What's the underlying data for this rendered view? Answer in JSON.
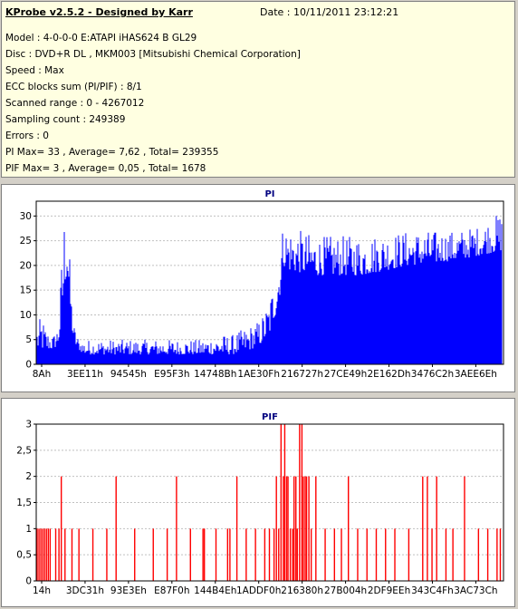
{
  "info": {
    "title": "KProbe v2.5.2 - Designed by Karr",
    "date": "Date : 10/11/2011 23:12:21",
    "lines": [
      "Model : 4-0-0-0 E:ATAPI  iHAS624  B     GL29",
      "Disc : DVD+R DL , MKM003 [Mitsubishi Chemical Corporation]",
      "Speed : Max",
      "ECC blocks sum (PI/PIF) : 8/1",
      "Scanned range : 0 - 4267012",
      "Sampling count : 249389",
      "Errors : 0",
      "PI Max= 33 , Average= 7,62 , Total= 239355",
      "PIF Max= 3 , Average= 0,05 , Total= 1678"
    ]
  },
  "chart_data": [
    {
      "type": "bar",
      "title": "PI",
      "color": "#0000ff",
      "ylim": [
        0,
        33
      ],
      "yticks": [
        0,
        5,
        10,
        15,
        20,
        25,
        30
      ],
      "ytick_labels": [
        "0",
        "5",
        "10",
        "15",
        "20",
        "25",
        "30"
      ],
      "xtick_labels": [
        "8Ah",
        "3EE11h",
        "94545h",
        "E95F3h",
        "14748Bh",
        "1AE30Fh",
        "216727h",
        "27CE49h",
        "2E162Dh",
        "3476C2h",
        "3AEE6Eh"
      ],
      "grid": true,
      "profile": {
        "x": [
          0,
          0.01,
          0.02,
          0.035,
          0.045,
          0.05,
          0.055,
          0.06,
          0.065,
          0.07,
          0.075,
          0.08,
          0.09,
          0.1,
          0.15,
          0.25,
          0.35,
          0.4,
          0.42,
          0.44,
          0.46,
          0.48,
          0.5,
          0.52,
          0.53,
          0.54,
          0.6,
          0.7,
          0.8,
          0.9,
          0.95,
          1.0
        ],
        "base": [
          3,
          3,
          3,
          3,
          4,
          6,
          10,
          16,
          18,
          12,
          7,
          4,
          3,
          2,
          2,
          2,
          2,
          2,
          2,
          2.5,
          3,
          4,
          6,
          12,
          20,
          19,
          18,
          18,
          20,
          21,
          22,
          23
        ],
        "peak": [
          8,
          10,
          7,
          6,
          8,
          15,
          28,
          33,
          30,
          22,
          12,
          8,
          5,
          5,
          5,
          5,
          5,
          6,
          6,
          7,
          8,
          9,
          13,
          22,
          29,
          28,
          26,
          26,
          27,
          27,
          28,
          31
        ]
      }
    },
    {
      "type": "bar",
      "title": "PIF",
      "color": "#ff0000",
      "ylim": [
        0,
        3
      ],
      "yticks": [
        0,
        0.5,
        1,
        1.5,
        2,
        2.5,
        3
      ],
      "ytick_labels": [
        "0",
        "0,5",
        "1",
        "1,5",
        "2",
        "2,5",
        "3"
      ],
      "xtick_labels": [
        "14h",
        "3DC31h",
        "93E3Eh",
        "E87F0h",
        "144B4Eh",
        "1ADDF0h",
        "216380h",
        "27B004h",
        "2DF9EEh",
        "343C4Fh",
        "3AC73Ch"
      ],
      "grid": true,
      "spikes": [
        {
          "x": 0.0,
          "y": 1
        },
        {
          "x": 0.004,
          "y": 1
        },
        {
          "x": 0.008,
          "y": 1
        },
        {
          "x": 0.012,
          "y": 1
        },
        {
          "x": 0.016,
          "y": 1
        },
        {
          "x": 0.02,
          "y": 1
        },
        {
          "x": 0.024,
          "y": 1
        },
        {
          "x": 0.028,
          "y": 1
        },
        {
          "x": 0.04,
          "y": 1
        },
        {
          "x": 0.047,
          "y": 1
        },
        {
          "x": 0.052,
          "y": 2
        },
        {
          "x": 0.06,
          "y": 1
        },
        {
          "x": 0.075,
          "y": 1
        },
        {
          "x": 0.09,
          "y": 1
        },
        {
          "x": 0.12,
          "y": 1
        },
        {
          "x": 0.15,
          "y": 1
        },
        {
          "x": 0.17,
          "y": 2
        },
        {
          "x": 0.21,
          "y": 1
        },
        {
          "x": 0.25,
          "y": 1
        },
        {
          "x": 0.28,
          "y": 1
        },
        {
          "x": 0.3,
          "y": 2
        },
        {
          "x": 0.33,
          "y": 1
        },
        {
          "x": 0.357,
          "y": 1
        },
        {
          "x": 0.36,
          "y": 1
        },
        {
          "x": 0.385,
          "y": 1
        },
        {
          "x": 0.41,
          "y": 1
        },
        {
          "x": 0.415,
          "y": 1
        },
        {
          "x": 0.43,
          "y": 2
        },
        {
          "x": 0.45,
          "y": 1
        },
        {
          "x": 0.47,
          "y": 1
        },
        {
          "x": 0.49,
          "y": 1
        },
        {
          "x": 0.5,
          "y": 1
        },
        {
          "x": 0.51,
          "y": 1
        },
        {
          "x": 0.515,
          "y": 2
        },
        {
          "x": 0.52,
          "y": 1
        },
        {
          "x": 0.525,
          "y": 3
        },
        {
          "x": 0.53,
          "y": 2
        },
        {
          "x": 0.533,
          "y": 3
        },
        {
          "x": 0.537,
          "y": 2
        },
        {
          "x": 0.54,
          "y": 2
        },
        {
          "x": 0.545,
          "y": 1
        },
        {
          "x": 0.55,
          "y": 1
        },
        {
          "x": 0.553,
          "y": 2
        },
        {
          "x": 0.557,
          "y": 2
        },
        {
          "x": 0.56,
          "y": 1
        },
        {
          "x": 0.565,
          "y": 3
        },
        {
          "x": 0.57,
          "y": 3
        },
        {
          "x": 0.573,
          "y": 2
        },
        {
          "x": 0.577,
          "y": 2
        },
        {
          "x": 0.58,
          "y": 2
        },
        {
          "x": 0.585,
          "y": 2
        },
        {
          "x": 0.59,
          "y": 1
        },
        {
          "x": 0.6,
          "y": 2
        },
        {
          "x": 0.62,
          "y": 1
        },
        {
          "x": 0.64,
          "y": 1
        },
        {
          "x": 0.655,
          "y": 1
        },
        {
          "x": 0.67,
          "y": 2
        },
        {
          "x": 0.69,
          "y": 1
        },
        {
          "x": 0.71,
          "y": 1
        },
        {
          "x": 0.73,
          "y": 1
        },
        {
          "x": 0.75,
          "y": 1
        },
        {
          "x": 0.77,
          "y": 1
        },
        {
          "x": 0.8,
          "y": 1
        },
        {
          "x": 0.83,
          "y": 2
        },
        {
          "x": 0.84,
          "y": 2
        },
        {
          "x": 0.85,
          "y": 1
        },
        {
          "x": 0.86,
          "y": 2
        },
        {
          "x": 0.88,
          "y": 1
        },
        {
          "x": 0.895,
          "y": 1
        },
        {
          "x": 0.92,
          "y": 2
        },
        {
          "x": 0.95,
          "y": 1
        },
        {
          "x": 0.97,
          "y": 1
        },
        {
          "x": 0.99,
          "y": 1
        },
        {
          "x": 0.997,
          "y": 1
        }
      ]
    }
  ]
}
